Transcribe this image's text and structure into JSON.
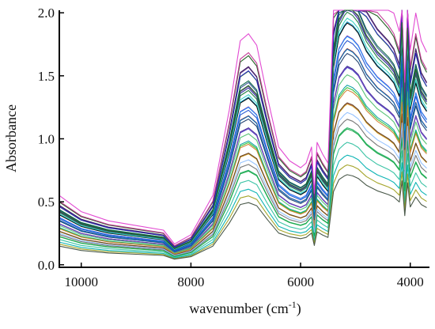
{
  "chart_data": {
    "type": "line",
    "title": "",
    "xlabel_main": "wavenumber (cm",
    "xlabel_sup": "-1",
    "xlabel_close": ")",
    "ylabel": "Absorbance",
    "xlim": [
      10400,
      3650
    ],
    "ylim": [
      -0.02,
      2.02
    ],
    "x_ticks": [
      10000,
      8000,
      6000,
      4000
    ],
    "x_tick_labels": [
      "10000",
      "8000",
      "6000",
      "4000"
    ],
    "y_ticks": [
      0.0,
      0.5,
      1.0,
      1.5,
      2.0
    ],
    "y_tick_labels": [
      "0.0",
      "0.5",
      "1.0",
      "1.5",
      "2.0"
    ],
    "grid": false,
    "legend": "none",
    "x": [
      10400,
      10000,
      9500,
      9000,
      8500,
      8300,
      8000,
      7600,
      7300,
      7100,
      6950,
      6800,
      6600,
      6400,
      6200,
      6000,
      5900,
      5800,
      5750,
      5700,
      5600,
      5500,
      5400,
      5300,
      5200,
      5150,
      5050,
      4950,
      4800,
      4600,
      4400,
      4300,
      4200,
      4150,
      4100,
      4050,
      4000,
      3900,
      3800,
      3700
    ],
    "shape": [
      0.3,
      0.23,
      0.19,
      0.17,
      0.15,
      0.09,
      0.13,
      0.3,
      0.67,
      0.97,
      1.0,
      0.95,
      0.72,
      0.51,
      0.45,
      0.42,
      0.44,
      0.51,
      0.31,
      0.53,
      0.48,
      0.44,
      1.18,
      1.37,
      1.43,
      1.45,
      1.43,
      1.39,
      1.28,
      1.19,
      1.13,
      1.09,
      1.01,
      1.35,
      0.79,
      1.32,
      0.93,
      1.09,
      0.97,
      0.92
    ],
    "series": [
      {
        "baseline": 0.42,
        "scale": 0.38,
        "color": "#1f3fbf"
      },
      {
        "baseline": 0.47,
        "scale": 0.47,
        "color": "#7a1fa2"
      },
      {
        "baseline": 0.5,
        "scale": 0.55,
        "color": "#1a7a3a"
      },
      {
        "baseline": 0.53,
        "scale": 0.52,
        "color": "#2b2b9a"
      },
      {
        "baseline": 0.38,
        "scale": 0.35,
        "color": "#0aa0a0"
      },
      {
        "baseline": 0.55,
        "scale": 0.62,
        "color": "#3c8a1f"
      },
      {
        "baseline": 0.35,
        "scale": 0.3,
        "color": "#d23c9a"
      },
      {
        "baseline": 0.45,
        "scale": 0.5,
        "color": "#1e90ff"
      },
      {
        "baseline": 0.58,
        "scale": 0.6,
        "color": "#5a2a8a"
      },
      {
        "baseline": 0.3,
        "scale": 0.25,
        "color": "#20b060"
      },
      {
        "baseline": 0.4,
        "scale": 0.42,
        "color": "#102080"
      },
      {
        "baseline": 0.6,
        "scale": 0.66,
        "color": "#1a5a1a"
      },
      {
        "baseline": 0.27,
        "scale": 0.22,
        "color": "#30c0a0"
      },
      {
        "baseline": 0.44,
        "scale": 0.45,
        "color": "#a03030"
      },
      {
        "baseline": 0.52,
        "scale": 0.58,
        "color": "#305090"
      },
      {
        "baseline": 0.33,
        "scale": 0.33,
        "color": "#d0a020"
      },
      {
        "baseline": 0.48,
        "scale": 0.53,
        "color": "#10a0d0"
      },
      {
        "baseline": 0.56,
        "scale": 0.64,
        "color": "#402060"
      },
      {
        "baseline": 0.36,
        "scale": 0.37,
        "color": "#2ec030"
      },
      {
        "baseline": 0.5,
        "scale": 0.49,
        "color": "#000000"
      },
      {
        "baseline": 0.24,
        "scale": 0.2,
        "color": "#00b0b0"
      },
      {
        "baseline": 0.41,
        "scale": 0.4,
        "color": "#8040c0"
      },
      {
        "baseline": 0.54,
        "scale": 0.56,
        "color": "#006040"
      },
      {
        "baseline": 0.31,
        "scale": 0.28,
        "color": "#707070"
      },
      {
        "baseline": 0.46,
        "scale": 0.46,
        "color": "#2050d0"
      },
      {
        "baseline": 0.59,
        "scale": 0.7,
        "color": "#c03090"
      },
      {
        "baseline": 0.39,
        "scale": 0.39,
        "color": "#50c070"
      },
      {
        "baseline": 0.22,
        "scale": 0.18,
        "color": "#a0a020"
      },
      {
        "baseline": 0.43,
        "scale": 0.44,
        "color": "#1a3a6a"
      },
      {
        "baseline": 0.51,
        "scale": 0.5,
        "color": "#30d0c0"
      },
      {
        "baseline": 0.34,
        "scale": 0.32,
        "color": "#604020"
      },
      {
        "baseline": 0.57,
        "scale": 0.59,
        "color": "#2828c8"
      },
      {
        "baseline": 0.29,
        "scale": 0.26,
        "color": "#18a848"
      },
      {
        "baseline": 0.49,
        "scale": 0.6,
        "color": "#603090"
      },
      {
        "baseline": 0.37,
        "scale": 0.34,
        "color": "#d08030"
      },
      {
        "baseline": 0.62,
        "scale": 0.8,
        "color": "#e040d0"
      },
      {
        "baseline": 0.2,
        "scale": 0.16,
        "color": "#405040"
      },
      {
        "baseline": 0.45,
        "scale": 0.43,
        "color": "#0070c0"
      },
      {
        "baseline": 0.53,
        "scale": 0.54,
        "color": "#207020"
      },
      {
        "baseline": 0.32,
        "scale": 0.3,
        "color": "#90c0ff"
      }
    ]
  }
}
